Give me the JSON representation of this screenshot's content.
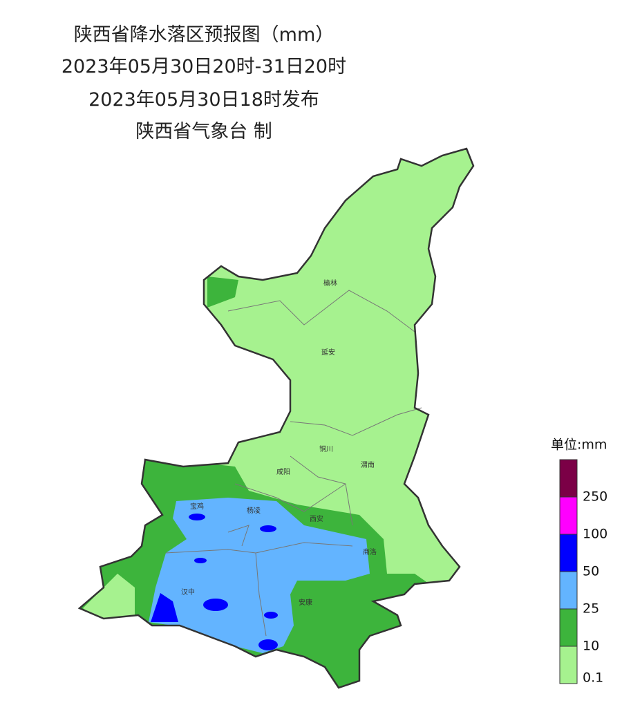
{
  "header": {
    "lines": [
      "陕西省降水落区预报图（mm）",
      "2023年05月30日20时-31日20时",
      "2023年05月30日18时发布",
      "陕西省气象台 制"
    ]
  },
  "map": {
    "cities": [
      "榆林",
      "延安",
      "铜川",
      "渭南",
      "咸阳",
      "宝鸡",
      "杨凌",
      "西安",
      "商洛",
      "汉中",
      "安康"
    ]
  },
  "legend": {
    "title": "单位:mm",
    "colors": [
      "#7b0046",
      "#ff00ff",
      "#0000ff",
      "#63b4ff",
      "#3db43c",
      "#a6f28f"
    ],
    "labels": [
      "250",
      "100",
      "50",
      "25",
      "10",
      "0.1"
    ]
  }
}
